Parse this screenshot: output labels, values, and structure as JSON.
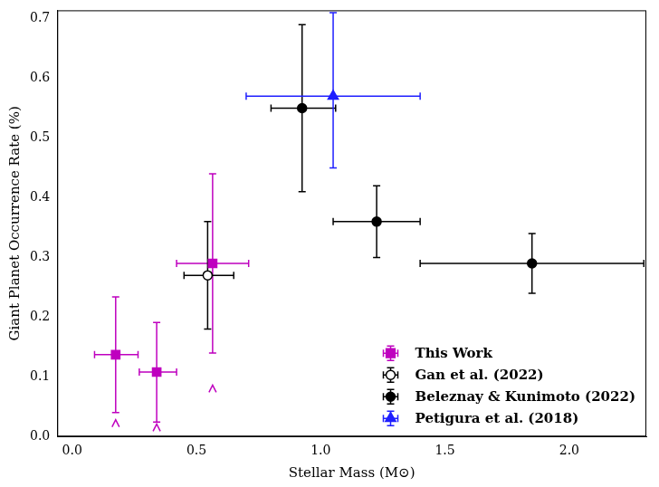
{
  "chart_data": {
    "type": "scatter",
    "x_label": "Stellar Mass (M⊙)",
    "y_label": "Giant Planet Occurrence Rate (%)",
    "xlim": [
      -0.06,
      2.31
    ],
    "ylim": [
      0,
      0.714
    ],
    "xticks": [
      {
        "value": 0,
        "label": "0.0"
      },
      {
        "value": 0.5,
        "label": "0.5"
      },
      {
        "value": 1,
        "label": "1.0"
      },
      {
        "value": 1.5,
        "label": "1.5"
      },
      {
        "value": 2,
        "label": "2.0"
      }
    ],
    "yticks": [
      {
        "value": 0,
        "label": "0.0"
      },
      {
        "value": 0.1,
        "label": "0.1"
      },
      {
        "value": 0.2,
        "label": "0.2"
      },
      {
        "value": 0.3,
        "label": "0.3"
      },
      {
        "value": 0.4,
        "label": "0.4"
      },
      {
        "value": 0.5,
        "label": "0.5"
      },
      {
        "value": 0.6,
        "label": "0.6"
      },
      {
        "value": 0.7,
        "label": "0.7"
      }
    ],
    "grid": false,
    "legend": "lower right",
    "series": [
      {
        "name": "This Work",
        "color": "#bf00bf",
        "marker": "square",
        "x": [
          0.175,
          0.34,
          0.565
        ],
        "values": [
          0.137,
          0.108,
          0.29
        ],
        "x_lower": [
          0.09,
          0.27,
          0.42
        ],
        "x_upper": [
          0.265,
          0.42,
          0.71
        ],
        "y_lower": [
          0.04,
          0.024,
          0.14
        ],
        "y_upper": [
          0.234,
          0.191,
          0.44
        ],
        "lower_limits": [
          0.022,
          0.015,
          0.08
        ]
      },
      {
        "name": "Gan et al. (2022)",
        "color": "#000000",
        "marker": "open_circle",
        "x": [
          0.545
        ],
        "values": [
          0.27
        ],
        "x_lower": [
          0.45
        ],
        "x_upper": [
          0.65
        ],
        "y_lower": [
          0.18
        ],
        "y_upper": [
          0.36
        ]
      },
      {
        "name": "Beleznay & Kunimoto (2022)",
        "color": "#000000",
        "marker": "circle",
        "x": [
          0.925,
          1.225,
          1.85
        ],
        "values": [
          0.55,
          0.36,
          0.29
        ],
        "x_lower": [
          0.8,
          1.05,
          1.4
        ],
        "x_upper": [
          1.06,
          1.4,
          2.3
        ],
        "y_lower": [
          0.41,
          0.3,
          0.24
        ],
        "y_upper": [
          0.69,
          0.42,
          0.34
        ]
      },
      {
        "name": "Petigura et al. (2018)",
        "color": "#1f1fff",
        "marker": "triangle",
        "x": [
          1.05
        ],
        "values": [
          0.57
        ],
        "x_lower": [
          0.7
        ],
        "x_upper": [
          1.4
        ],
        "y_lower": [
          0.45
        ],
        "y_upper": [
          0.71
        ]
      }
    ]
  }
}
